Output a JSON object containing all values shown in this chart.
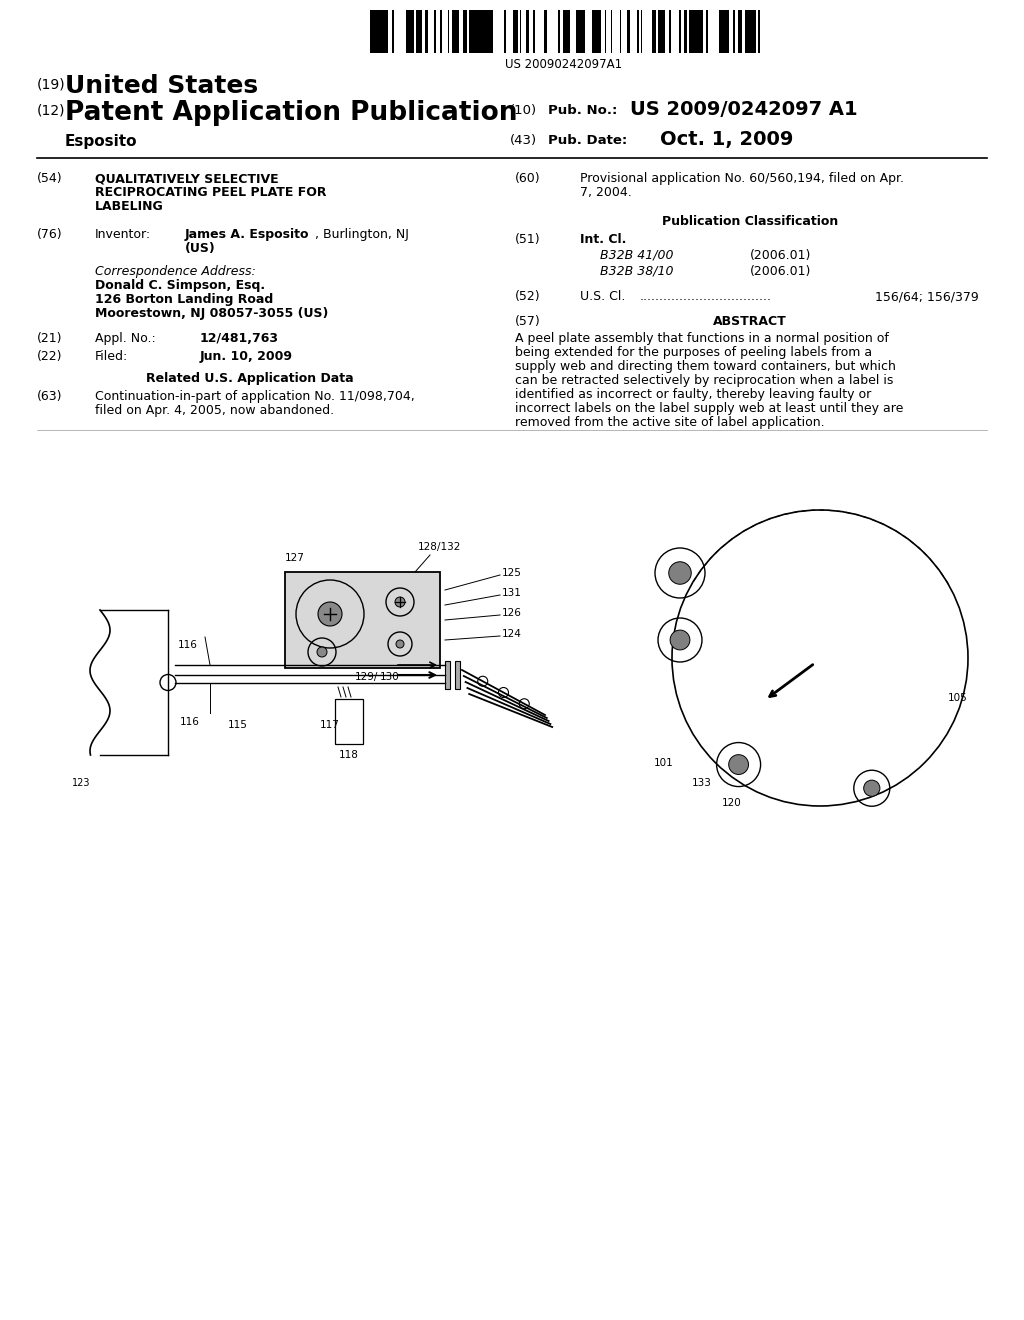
{
  "barcode_text": "US 20090242097A1",
  "pub_no_label": "(10) Pub. No.:",
  "pub_no": "US 2009/0242097 A1",
  "pub_date_label": "(43) Pub. Date:",
  "pub_date": "Oct. 1, 2009",
  "title": "QUALITATIVELY SELECTIVE\nRECIPROCATING PEEL PLATE FOR\nLABELING",
  "inventor_value": "James A. Esposito, Burlington, NJ\n(US)",
  "corr_label": "Correspondence Address:",
  "corr_name": "Donald C. Simpson, Esq.",
  "corr_addr1": "126 Borton Landing Road",
  "corr_addr2": "Moorestown, NJ 08057-3055 (US)",
  "appl_value": "12/481,763",
  "filed_value": "Jun. 10, 2009",
  "related_header": "Related U.S. Application Data",
  "cont_text": "Continuation-in-part of application No. 11/098,704,\nfiled on Apr. 4, 2005, now abandoned.",
  "prov_text": "Provisional application No. 60/560,194, filed on Apr.\n7, 2004.",
  "int_cl_1": "B32B 41/00",
  "int_cl_1_year": "(2006.01)",
  "int_cl_2": "B32B 38/10",
  "int_cl_2_year": "(2006.01)",
  "us_cl_value": "156/64; 156/379",
  "abstract_text": "A peel plate assembly that functions in a normal position of\nbeing extended for the purposes of peeling labels from a\nsupply web and directing them toward containers, but which\ncan be retracted selectively by reciprocation when a label is\nidentified as incorrect or faulty, thereby leaving faulty or\nincorrect labels on the label supply web at least until they are\nremoved from the active site of label application.",
  "bg_color": "#ffffff"
}
